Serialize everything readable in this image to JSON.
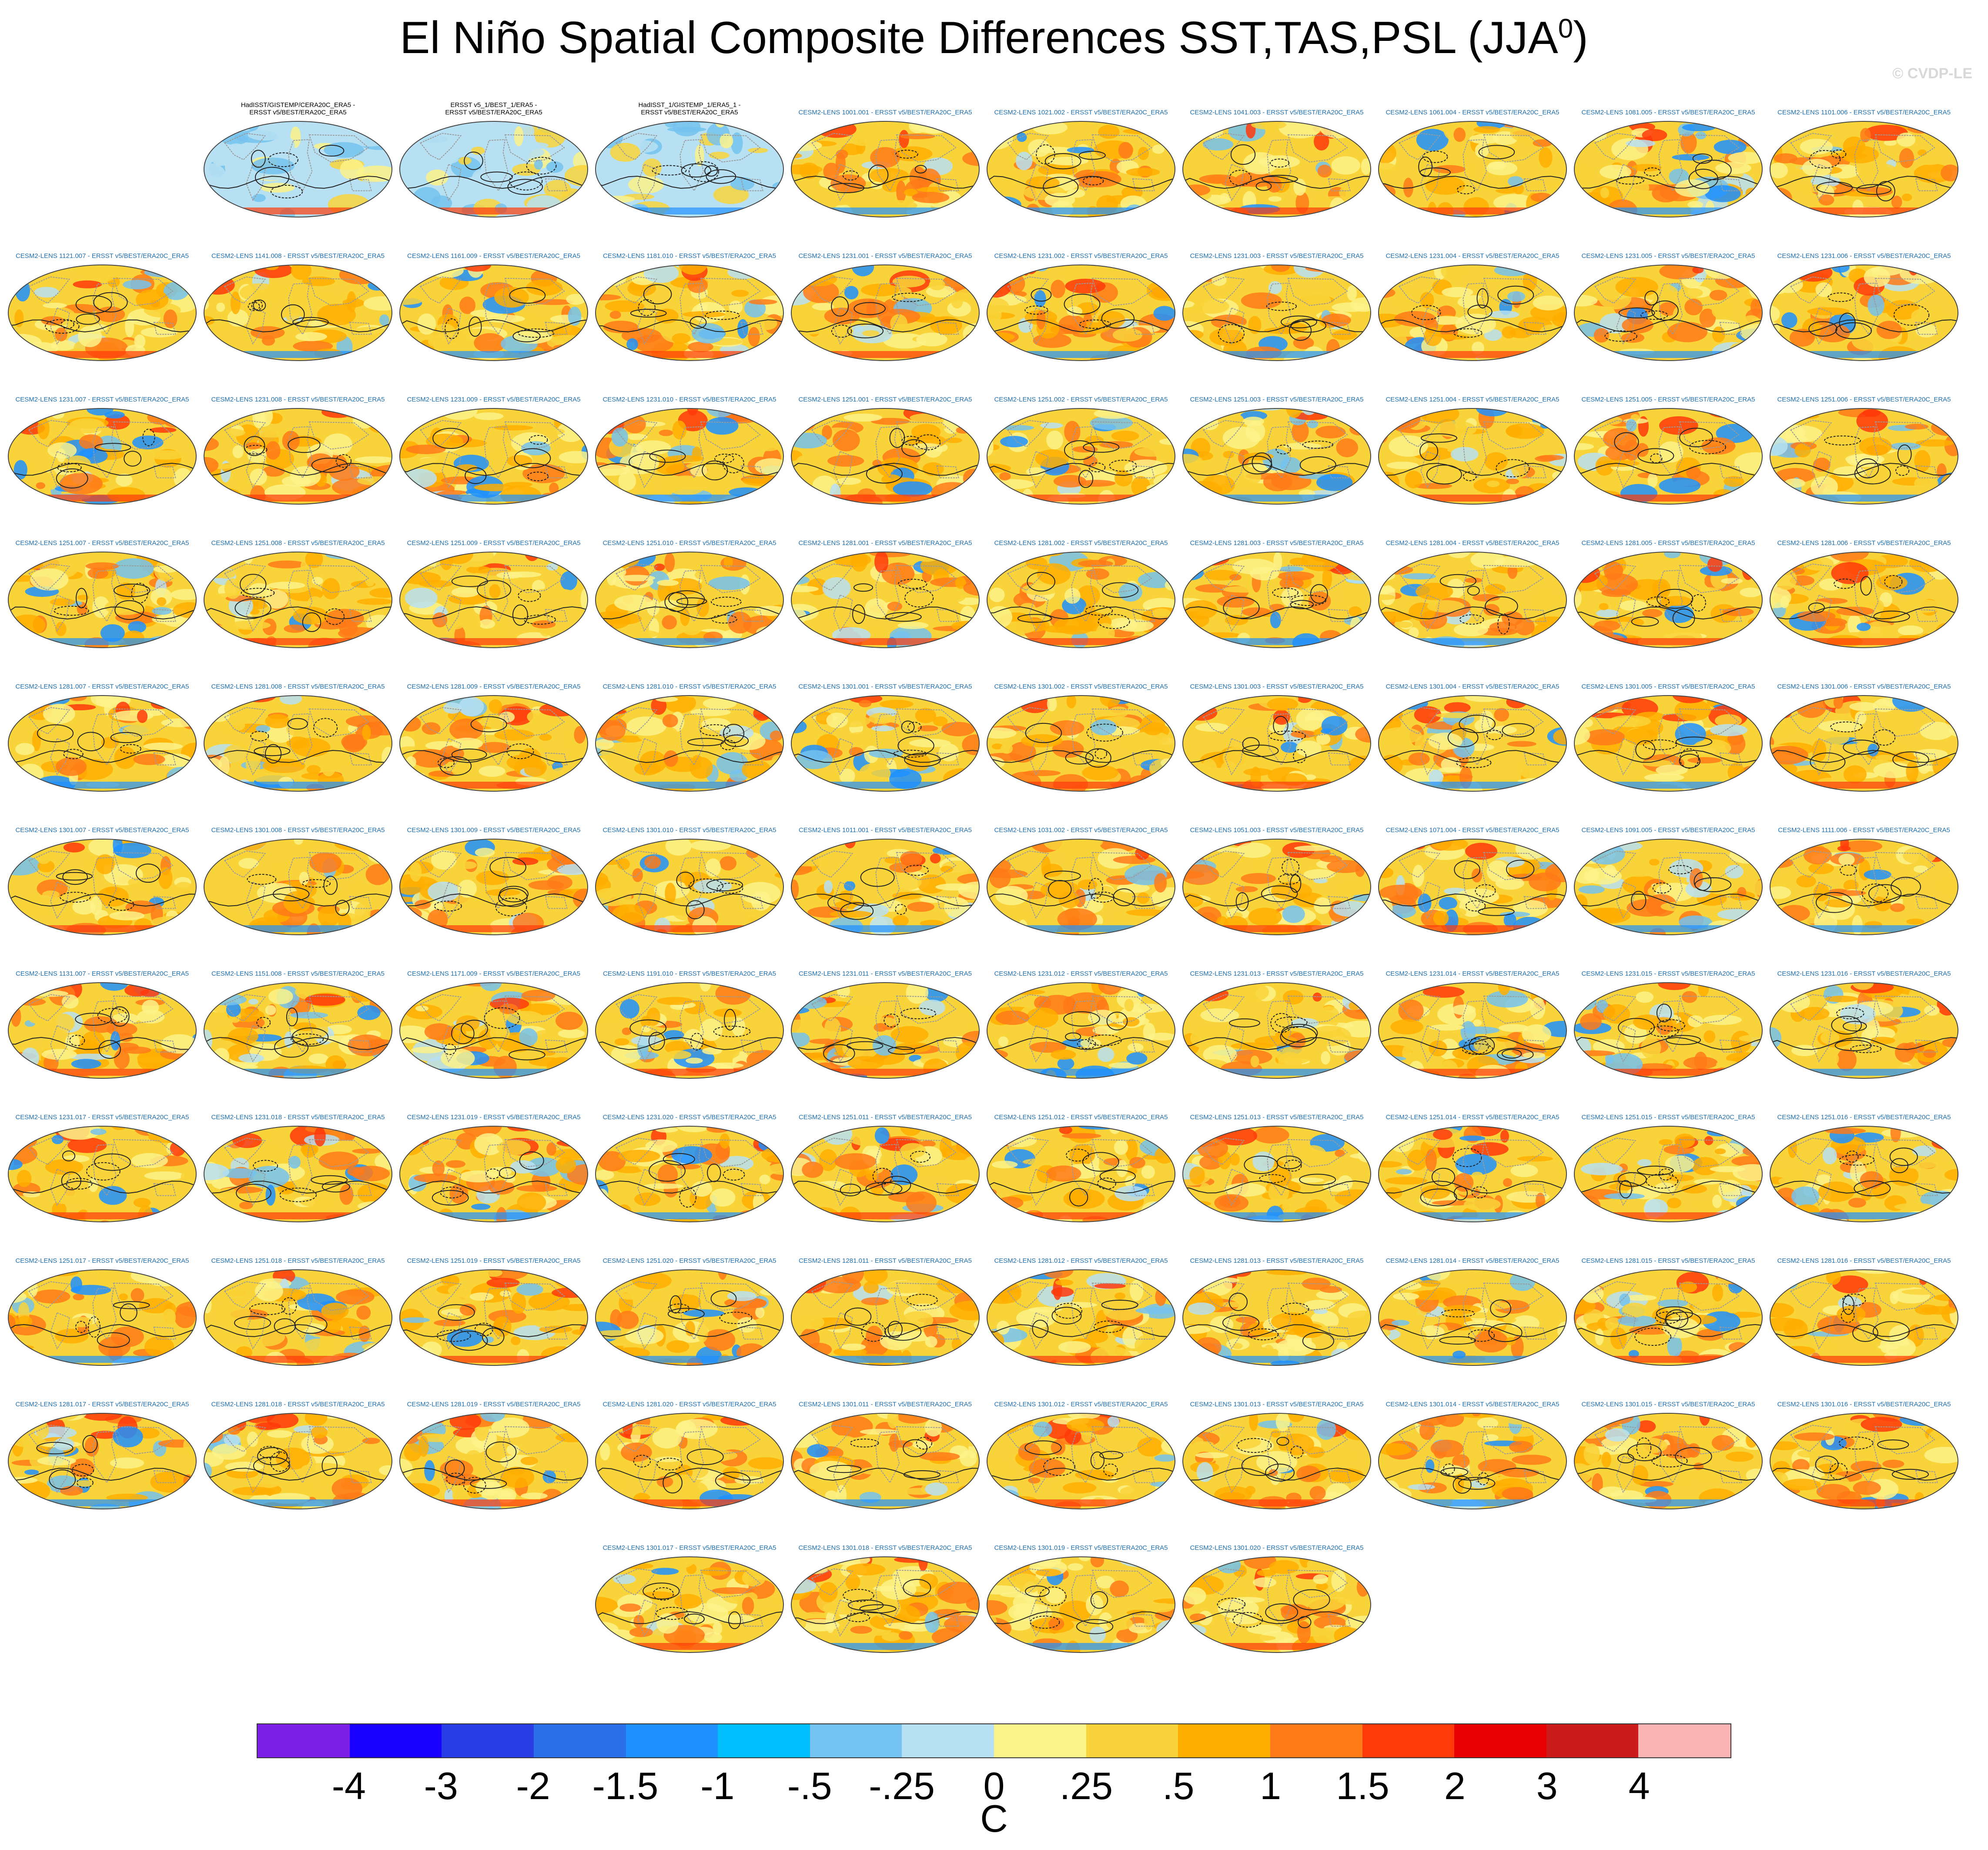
{
  "title": {
    "main": "El Niño Spatial Composite Differences SST,TAS,PSL (JJA",
    "sup": "0",
    "close": ")"
  },
  "watermark": "© CVDP-LE",
  "chart_data": {
    "type": "heatmap",
    "title": "El Niño Spatial Composite Differences SST,TAS,PSL (JJA0)",
    "units": "C",
    "colorbar": {
      "labels": [
        "-4",
        "-3",
        "-2",
        "-1.5",
        "-1",
        "-.5",
        "-.25",
        "0",
        ".25",
        ".5",
        "1",
        "1.5",
        "2",
        "3",
        "4"
      ],
      "colors": [
        "#7b1fe6",
        "#1a00ff",
        "#2a3ee8",
        "#2a6ee8",
        "#1e90ff",
        "#00bfff",
        "#74c2ef",
        "#b7e1f2",
        "#fbf28a",
        "#f9d33a",
        "#ffae00",
        "#ff7a18",
        "#ff3a0a",
        "#e80000",
        "#cc1b1b",
        "#fbb4b4"
      ]
    },
    "panels": [
      {
        "label": "HadISST/GISTEMP/CERA20C_ERA5 -\nERSST v5/BEST/ERA20C_ERA5",
        "kind": "obs"
      },
      {
        "label": "ERSST v5_1/BEST_1/ERA5 -\nERSST v5/BEST/ERA20C_ERA5",
        "kind": "obs"
      },
      {
        "label": "HadISST_1/GISTEMP_1/ERA5_1 -\nERSST v5/BEST/ERA20C_ERA5",
        "kind": "obs"
      },
      {
        "label": "CESM2-LENS 1001.001 - ERSST v5/BEST/ERA20C_ERA5",
        "kind": "model"
      },
      {
        "label": "CESM2-LENS 1021.002 - ERSST v5/BEST/ERA20C_ERA5",
        "kind": "model"
      },
      {
        "label": "CESM2-LENS 1041.003 - ERSST v5/BEST/ERA20C_ERA5",
        "kind": "model"
      },
      {
        "label": "CESM2-LENS 1061.004 - ERSST v5/BEST/ERA20C_ERA5",
        "kind": "model"
      },
      {
        "label": "CESM2-LENS 1081.005 - ERSST v5/BEST/ERA20C_ERA5",
        "kind": "model"
      },
      {
        "label": "CESM2-LENS 1101.006 - ERSST v5/BEST/ERA20C_ERA5",
        "kind": "model"
      },
      {
        "label": "CESM2-LENS 1121.007 - ERSST v5/BEST/ERA20C_ERA5",
        "kind": "model"
      },
      {
        "label": "CESM2-LENS 1141.008 - ERSST v5/BEST/ERA20C_ERA5",
        "kind": "model"
      },
      {
        "label": "CESM2-LENS 1161.009 - ERSST v5/BEST/ERA20C_ERA5",
        "kind": "model"
      },
      {
        "label": "CESM2-LENS 1181.010 - ERSST v5/BEST/ERA20C_ERA5",
        "kind": "model"
      },
      {
        "label": "CESM2-LENS 1231.001 - ERSST v5/BEST/ERA20C_ERA5",
        "kind": "model"
      },
      {
        "label": "CESM2-LENS 1231.002 - ERSST v5/BEST/ERA20C_ERA5",
        "kind": "model"
      },
      {
        "label": "CESM2-LENS 1231.003 - ERSST v5/BEST/ERA20C_ERA5",
        "kind": "model"
      },
      {
        "label": "CESM2-LENS 1231.004 - ERSST v5/BEST/ERA20C_ERA5",
        "kind": "model"
      },
      {
        "label": "CESM2-LENS 1231.005 - ERSST v5/BEST/ERA20C_ERA5",
        "kind": "model"
      },
      {
        "label": "CESM2-LENS 1231.006 - ERSST v5/BEST/ERA20C_ERA5",
        "kind": "model"
      },
      {
        "label": "CESM2-LENS 1231.007 - ERSST v5/BEST/ERA20C_ERA5",
        "kind": "model"
      },
      {
        "label": "CESM2-LENS 1231.008 - ERSST v5/BEST/ERA20C_ERA5",
        "kind": "model"
      },
      {
        "label": "CESM2-LENS 1231.009 - ERSST v5/BEST/ERA20C_ERA5",
        "kind": "model"
      },
      {
        "label": "CESM2-LENS 1231.010 - ERSST v5/BEST/ERA20C_ERA5",
        "kind": "model"
      },
      {
        "label": "CESM2-LENS 1251.001 - ERSST v5/BEST/ERA20C_ERA5",
        "kind": "model"
      },
      {
        "label": "CESM2-LENS 1251.002 - ERSST v5/BEST/ERA20C_ERA5",
        "kind": "model"
      },
      {
        "label": "CESM2-LENS 1251.003 - ERSST v5/BEST/ERA20C_ERA5",
        "kind": "model"
      },
      {
        "label": "CESM2-LENS 1251.004 - ERSST v5/BEST/ERA20C_ERA5",
        "kind": "model"
      },
      {
        "label": "CESM2-LENS 1251.005 - ERSST v5/BEST/ERA20C_ERA5",
        "kind": "model"
      },
      {
        "label": "CESM2-LENS 1251.006 - ERSST v5/BEST/ERA20C_ERA5",
        "kind": "model"
      },
      {
        "label": "CESM2-LENS 1251.007 - ERSST v5/BEST/ERA20C_ERA5",
        "kind": "model"
      },
      {
        "label": "CESM2-LENS 1251.008 - ERSST v5/BEST/ERA20C_ERA5",
        "kind": "model"
      },
      {
        "label": "CESM2-LENS 1251.009 - ERSST v5/BEST/ERA20C_ERA5",
        "kind": "model"
      },
      {
        "label": "CESM2-LENS 1251.010 - ERSST v5/BEST/ERA20C_ERA5",
        "kind": "model"
      },
      {
        "label": "CESM2-LENS 1281.001 - ERSST v5/BEST/ERA20C_ERA5",
        "kind": "model"
      },
      {
        "label": "CESM2-LENS 1281.002 - ERSST v5/BEST/ERA20C_ERA5",
        "kind": "model"
      },
      {
        "label": "CESM2-LENS 1281.003 - ERSST v5/BEST/ERA20C_ERA5",
        "kind": "model"
      },
      {
        "label": "CESM2-LENS 1281.004 - ERSST v5/BEST/ERA20C_ERA5",
        "kind": "model"
      },
      {
        "label": "CESM2-LENS 1281.005 - ERSST v5/BEST/ERA20C_ERA5",
        "kind": "model"
      },
      {
        "label": "CESM2-LENS 1281.006 - ERSST v5/BEST/ERA20C_ERA5",
        "kind": "model"
      },
      {
        "label": "CESM2-LENS 1281.007 - ERSST v5/BEST/ERA20C_ERA5",
        "kind": "model"
      },
      {
        "label": "CESM2-LENS 1281.008 - ERSST v5/BEST/ERA20C_ERA5",
        "kind": "model"
      },
      {
        "label": "CESM2-LENS 1281.009 - ERSST v5/BEST/ERA20C_ERA5",
        "kind": "model"
      },
      {
        "label": "CESM2-LENS 1281.010 - ERSST v5/BEST/ERA20C_ERA5",
        "kind": "model"
      },
      {
        "label": "CESM2-LENS 1301.001 - ERSST v5/BEST/ERA20C_ERA5",
        "kind": "model"
      },
      {
        "label": "CESM2-LENS 1301.002 - ERSST v5/BEST/ERA20C_ERA5",
        "kind": "model"
      },
      {
        "label": "CESM2-LENS 1301.003 - ERSST v5/BEST/ERA20C_ERA5",
        "kind": "model"
      },
      {
        "label": "CESM2-LENS 1301.004 - ERSST v5/BEST/ERA20C_ERA5",
        "kind": "model"
      },
      {
        "label": "CESM2-LENS 1301.005 - ERSST v5/BEST/ERA20C_ERA5",
        "kind": "model"
      },
      {
        "label": "CESM2-LENS 1301.006 - ERSST v5/BEST/ERA20C_ERA5",
        "kind": "model"
      },
      {
        "label": "CESM2-LENS 1301.007 - ERSST v5/BEST/ERA20C_ERA5",
        "kind": "model"
      },
      {
        "label": "CESM2-LENS 1301.008 - ERSST v5/BEST/ERA20C_ERA5",
        "kind": "model"
      },
      {
        "label": "CESM2-LENS 1301.009 - ERSST v5/BEST/ERA20C_ERA5",
        "kind": "model"
      },
      {
        "label": "CESM2-LENS 1301.010 - ERSST v5/BEST/ERA20C_ERA5",
        "kind": "model"
      },
      {
        "label": "CESM2-LENS 1011.001 - ERSST v5/BEST/ERA20C_ERA5",
        "kind": "model"
      },
      {
        "label": "CESM2-LENS 1031.002 - ERSST v5/BEST/ERA20C_ERA5",
        "kind": "model"
      },
      {
        "label": "CESM2-LENS 1051.003 - ERSST v5/BEST/ERA20C_ERA5",
        "kind": "model"
      },
      {
        "label": "CESM2-LENS 1071.004 - ERSST v5/BEST/ERA20C_ERA5",
        "kind": "model"
      },
      {
        "label": "CESM2-LENS 1091.005 - ERSST v5/BEST/ERA20C_ERA5",
        "kind": "model"
      },
      {
        "label": "CESM2-LENS 1111.006 - ERSST v5/BEST/ERA20C_ERA5",
        "kind": "model"
      },
      {
        "label": "CESM2-LENS 1131.007 - ERSST v5/BEST/ERA20C_ERA5",
        "kind": "model"
      },
      {
        "label": "CESM2-LENS 1151.008 - ERSST v5/BEST/ERA20C_ERA5",
        "kind": "model"
      },
      {
        "label": "CESM2-LENS 1171.009 - ERSST v5/BEST/ERA20C_ERA5",
        "kind": "model"
      },
      {
        "label": "CESM2-LENS 1191.010 - ERSST v5/BEST/ERA20C_ERA5",
        "kind": "model"
      },
      {
        "label": "CESM2-LENS 1231.011 - ERSST v5/BEST/ERA20C_ERA5",
        "kind": "model"
      },
      {
        "label": "CESM2-LENS 1231.012 - ERSST v5/BEST/ERA20C_ERA5",
        "kind": "model"
      },
      {
        "label": "CESM2-LENS 1231.013 - ERSST v5/BEST/ERA20C_ERA5",
        "kind": "model"
      },
      {
        "label": "CESM2-LENS 1231.014 - ERSST v5/BEST/ERA20C_ERA5",
        "kind": "model"
      },
      {
        "label": "CESM2-LENS 1231.015 - ERSST v5/BEST/ERA20C_ERA5",
        "kind": "model"
      },
      {
        "label": "CESM2-LENS 1231.016 - ERSST v5/BEST/ERA20C_ERA5",
        "kind": "model"
      },
      {
        "label": "CESM2-LENS 1231.017 - ERSST v5/BEST/ERA20C_ERA5",
        "kind": "model"
      },
      {
        "label": "CESM2-LENS 1231.018 - ERSST v5/BEST/ERA20C_ERA5",
        "kind": "model"
      },
      {
        "label": "CESM2-LENS 1231.019 - ERSST v5/BEST/ERA20C_ERA5",
        "kind": "model"
      },
      {
        "label": "CESM2-LENS 1231.020 - ERSST v5/BEST/ERA20C_ERA5",
        "kind": "model"
      },
      {
        "label": "CESM2-LENS 1251.011 - ERSST v5/BEST/ERA20C_ERA5",
        "kind": "model"
      },
      {
        "label": "CESM2-LENS 1251.012 - ERSST v5/BEST/ERA20C_ERA5",
        "kind": "model"
      },
      {
        "label": "CESM2-LENS 1251.013 - ERSST v5/BEST/ERA20C_ERA5",
        "kind": "model"
      },
      {
        "label": "CESM2-LENS 1251.014 - ERSST v5/BEST/ERA20C_ERA5",
        "kind": "model"
      },
      {
        "label": "CESM2-LENS 1251.015 - ERSST v5/BEST/ERA20C_ERA5",
        "kind": "model"
      },
      {
        "label": "CESM2-LENS 1251.016 - ERSST v5/BEST/ERA20C_ERA5",
        "kind": "model"
      },
      {
        "label": "CESM2-LENS 1251.017 - ERSST v5/BEST/ERA20C_ERA5",
        "kind": "model"
      },
      {
        "label": "CESM2-LENS 1251.018 - ERSST v5/BEST/ERA20C_ERA5",
        "kind": "model"
      },
      {
        "label": "CESM2-LENS 1251.019 - ERSST v5/BEST/ERA20C_ERA5",
        "kind": "model"
      },
      {
        "label": "CESM2-LENS 1251.020 - ERSST v5/BEST/ERA20C_ERA5",
        "kind": "model"
      },
      {
        "label": "CESM2-LENS 1281.011 - ERSST v5/BEST/ERA20C_ERA5",
        "kind": "model"
      },
      {
        "label": "CESM2-LENS 1281.012 - ERSST v5/BEST/ERA20C_ERA5",
        "kind": "model"
      },
      {
        "label": "CESM2-LENS 1281.013 - ERSST v5/BEST/ERA20C_ERA5",
        "kind": "model"
      },
      {
        "label": "CESM2-LENS 1281.014 - ERSST v5/BEST/ERA20C_ERA5",
        "kind": "model"
      },
      {
        "label": "CESM2-LENS 1281.015 - ERSST v5/BEST/ERA20C_ERA5",
        "kind": "model"
      },
      {
        "label": "CESM2-LENS 1281.016 - ERSST v5/BEST/ERA20C_ERA5",
        "kind": "model"
      },
      {
        "label": "CESM2-LENS 1281.017 - ERSST v5/BEST/ERA20C_ERA5",
        "kind": "model"
      },
      {
        "label": "CESM2-LENS 1281.018 - ERSST v5/BEST/ERA20C_ERA5",
        "kind": "model"
      },
      {
        "label": "CESM2-LENS 1281.019 - ERSST v5/BEST/ERA20C_ERA5",
        "kind": "model"
      },
      {
        "label": "CESM2-LENS 1281.020 - ERSST v5/BEST/ERA20C_ERA5",
        "kind": "model"
      },
      {
        "label": "CESM2-LENS 1301.011 - ERSST v5/BEST/ERA20C_ERA5",
        "kind": "model"
      },
      {
        "label": "CESM2-LENS 1301.012 - ERSST v5/BEST/ERA20C_ERA5",
        "kind": "model"
      },
      {
        "label": "CESM2-LENS 1301.013 - ERSST v5/BEST/ERA20C_ERA5",
        "kind": "model"
      },
      {
        "label": "CESM2-LENS 1301.014 - ERSST v5/BEST/ERA20C_ERA5",
        "kind": "model"
      },
      {
        "label": "CESM2-LENS 1301.015 - ERSST v5/BEST/ERA20C_ERA5",
        "kind": "model"
      },
      {
        "label": "CESM2-LENS 1301.016 - ERSST v5/BEST/ERA20C_ERA5",
        "kind": "model"
      },
      {
        "label": "CESM2-LENS 1301.017 - ERSST v5/BEST/ERA20C_ERA5",
        "kind": "model"
      },
      {
        "label": "CESM2-LENS 1301.018 - ERSST v5/BEST/ERA20C_ERA5",
        "kind": "model"
      },
      {
        "label": "CESM2-LENS 1301.019 - ERSST v5/BEST/ERA20C_ERA5",
        "kind": "model"
      },
      {
        "label": "CESM2-LENS 1301.020 - ERSST v5/BEST/ERA20C_ERA5",
        "kind": "model"
      }
    ]
  }
}
